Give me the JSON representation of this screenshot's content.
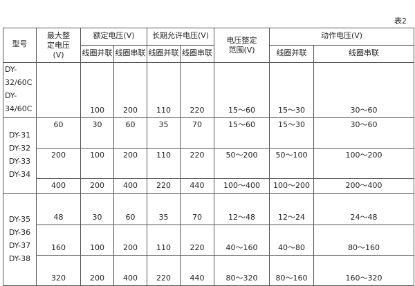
{
  "caption": "表2",
  "headers": {
    "model": "型号",
    "max_setting_voltage": "最大整定电压(V)",
    "rated_voltage": "额定电压(V)",
    "long_term_voltage": "长期允许电压(V)",
    "setting_range": "电压整定范围(V)",
    "action_voltage": "动作电压(V)",
    "parallel": "线圈并联",
    "series": "线圈串联"
  },
  "groups": [
    {
      "models": [
        "DY-32/60C",
        "DY-34/60C"
      ],
      "align": "bot",
      "rows": [
        [
          "",
          "100",
          "200",
          "110",
          "220",
          "15～60",
          "15～30",
          "30～60"
        ]
      ]
    },
    {
      "models": [
        "DY-31",
        "DY-32",
        "DY-33",
        "DY-34"
      ],
      "align": "top",
      "rows": [
        [
          "60",
          "30",
          "60",
          "35",
          "70",
          "15～60",
          "15～30",
          "30～60"
        ],
        [
          "200",
          "100",
          "200",
          "110",
          "220",
          "50～200",
          "50～100",
          "100～200"
        ],
        [
          "400",
          "200",
          "400",
          "220",
          "440",
          "100～400",
          "100～200",
          "200～400"
        ]
      ]
    },
    {
      "models": [
        "DY-35",
        "DY-36",
        "DY-37",
        "DY-38"
      ],
      "align": "bot",
      "rows": [
        [
          "48",
          "30",
          "60",
          "35",
          "70",
          "12～48",
          "12～24",
          "24～48"
        ],
        [
          "160",
          "100",
          "200",
          "110",
          "220",
          "40～160",
          "40～80",
          "80～160"
        ],
        [
          "320",
          "200",
          "400",
          "220",
          "440",
          "80～320",
          "80～160",
          "160～320"
        ]
      ]
    }
  ]
}
